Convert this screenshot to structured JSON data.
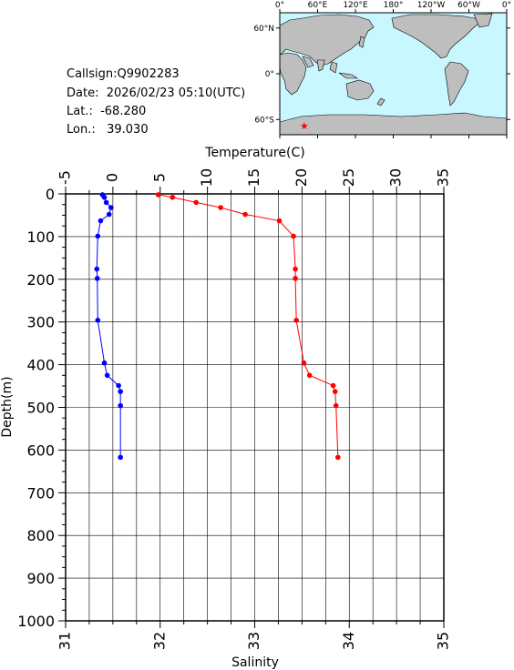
{
  "info": {
    "callsign": "Callsign:Q9902283",
    "date": "Date:  2026/02/23 05:10(UTC)",
    "lat": "Lat.:  -68.280",
    "lon": "Lon.:   39.030"
  },
  "map": {
    "lon_labels": [
      "0°",
      "60°E",
      "120°E",
      "180°",
      "120°W",
      "60°W",
      "0°"
    ],
    "lat_labels": [
      "60°N",
      "0°",
      "60°S"
    ],
    "colors": {
      "ocean": "#c8f7ff",
      "land": "#bebebe",
      "marker": "#ff0000"
    },
    "marker_icon": "star-icon",
    "marker_position": {
      "lon": 39.03,
      "lat": -68.28
    }
  },
  "chart_data": {
    "type": "line",
    "top_axis_title": "Temperature(C)",
    "bottom_axis_title": "Salinity",
    "ylabel": "Depth(m)",
    "temperature_range": [
      -5,
      35
    ],
    "salinity_range": [
      31,
      35
    ],
    "depth_range": [
      0,
      1000
    ],
    "temperature_ticks": [
      "-5",
      "0",
      "5",
      "10",
      "15",
      "20",
      "25",
      "30",
      "35"
    ],
    "salinity_ticks": [
      "31",
      "32",
      "33",
      "34",
      "35"
    ],
    "depth_ticks": [
      "0",
      "100",
      "200",
      "300",
      "400",
      "500",
      "600",
      "700",
      "800",
      "900",
      "1000"
    ],
    "grid": true,
    "series": [
      {
        "name": "Temperature",
        "axis": "top",
        "color": "#0000ff",
        "points": [
          [
            -1.1,
            2
          ],
          [
            -0.9,
            8
          ],
          [
            -0.7,
            20
          ],
          [
            -0.2,
            32
          ],
          [
            -0.4,
            48
          ],
          [
            -1.3,
            63
          ],
          [
            -1.6,
            99
          ],
          [
            -1.7,
            176
          ],
          [
            -1.65,
            198
          ],
          [
            -1.6,
            296
          ],
          [
            -0.9,
            396
          ],
          [
            -0.6,
            425
          ],
          [
            0.6,
            449
          ],
          [
            0.8,
            463
          ],
          [
            0.8,
            496
          ],
          [
            0.8,
            617
          ]
        ]
      },
      {
        "name": "Salinity",
        "axis": "bottom",
        "color": "#ff0000",
        "points": [
          [
            31.98,
            2
          ],
          [
            32.13,
            8
          ],
          [
            32.38,
            20
          ],
          [
            32.64,
            32
          ],
          [
            32.9,
            48
          ],
          [
            33.26,
            63
          ],
          [
            33.41,
            99
          ],
          [
            33.43,
            176
          ],
          [
            33.43,
            198
          ],
          [
            33.44,
            296
          ],
          [
            33.52,
            396
          ],
          [
            33.58,
            425
          ],
          [
            33.83,
            449
          ],
          [
            33.85,
            463
          ],
          [
            33.86,
            496
          ],
          [
            33.88,
            617
          ]
        ]
      }
    ]
  }
}
